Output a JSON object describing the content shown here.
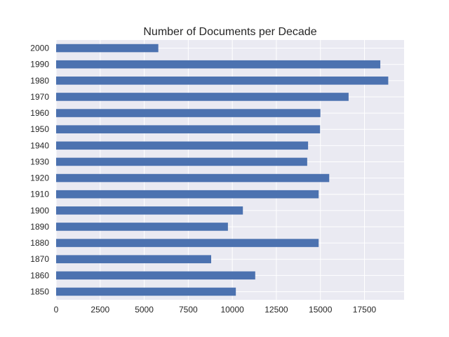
{
  "chart_data": {
    "type": "bar",
    "orientation": "horizontal",
    "title": "Number of Documents per Decade",
    "xlabel": "",
    "ylabel": "",
    "categories": [
      "2000",
      "1990",
      "1980",
      "1970",
      "1960",
      "1950",
      "1940",
      "1930",
      "1920",
      "1910",
      "1900",
      "1890",
      "1880",
      "1870",
      "1860",
      "1850"
    ],
    "values": [
      5800,
      18400,
      18850,
      16600,
      15000,
      14980,
      14300,
      14250,
      15500,
      14900,
      10600,
      9750,
      14900,
      8800,
      11300,
      10200
    ],
    "xlim": [
      0,
      19750
    ],
    "xticks": [
      0,
      2500,
      5000,
      7500,
      10000,
      12500,
      15000,
      17500
    ],
    "grid": true,
    "colors": {
      "bar": "#4c72b0",
      "plot_background": "#eaeaf2",
      "grid": "#ffffff"
    }
  }
}
